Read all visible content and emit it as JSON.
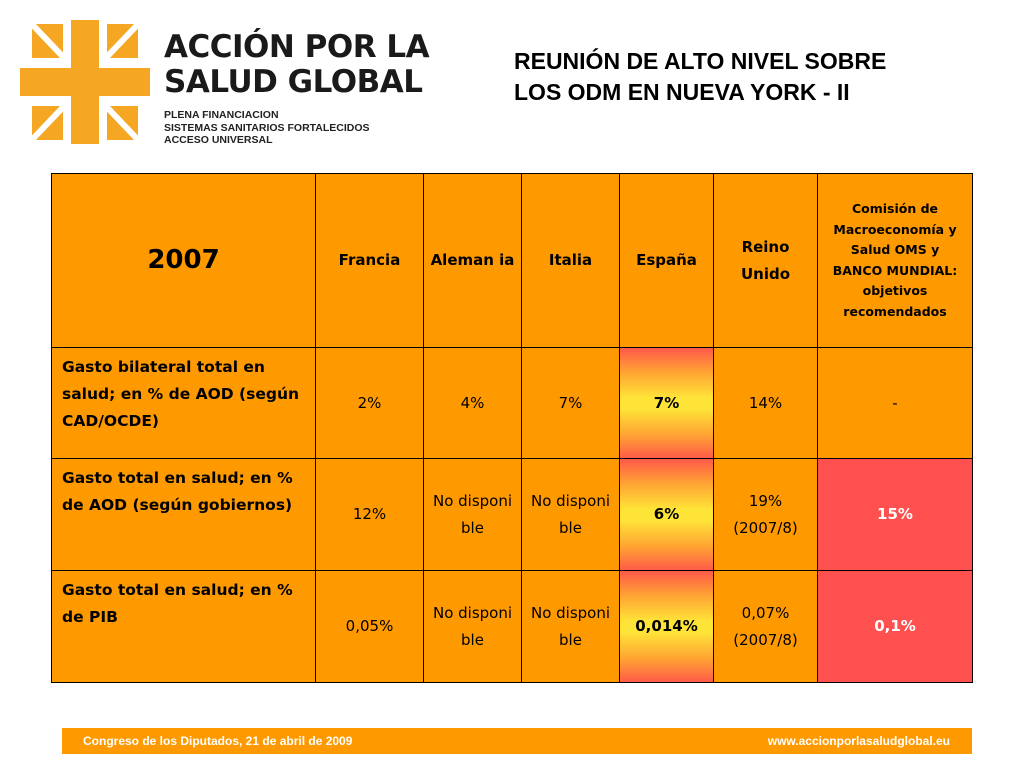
{
  "logo": {
    "title_line1": "ACCIÓN POR LA",
    "title_line2": "SALUD GLOBAL",
    "sub_line1": "PLENA FINANCIACION",
    "sub_line2": "SISTEMAS SANITARIOS FORTALECIDOS",
    "sub_line3": "ACCESO UNIVERSAL",
    "accent_color": "#f5a623"
  },
  "heading": "REUNIÓN DE ALTO NIVEL SOBRE LOS ODM EN NUEVA YORK - II",
  "table": {
    "year": "2007",
    "columns": [
      "Francia",
      "Aleman ia",
      "Italia",
      "España",
      "Reino Unido",
      "Comisión de Macroeconomía y Salud OMS y BANCO MUNDIAL: objetivos recomendados"
    ],
    "rows": [
      {
        "label": "Gasto bilateral total en salud; en % de AOD (según CAD/OCDE)",
        "cells": [
          "2%",
          "4%",
          "7%",
          "7%",
          "14%",
          "-"
        ]
      },
      {
        "label": "Gasto total en salud; en % de AOD (según gobiernos)",
        "cells": [
          "12%",
          "No disponi ble",
          "No disponi ble",
          "6%",
          "19% (2007/8)",
          "15%"
        ]
      },
      {
        "label": "Gasto total en salud; en % de PIB",
        "cells": [
          "0,05%",
          "No disponi ble",
          "No disponi ble",
          "0,014%",
          "0,07% (2007/8)",
          "0,1%"
        ]
      }
    ],
    "colors": {
      "cell": "#ff9900",
      "highlight": "#ff5050",
      "spain_gradient_center": "#ffe438"
    }
  },
  "footer": {
    "left": "Congreso de los Diputados, 21 de abril de 2009",
    "right": "www.accionporlasaludglobal.eu"
  }
}
